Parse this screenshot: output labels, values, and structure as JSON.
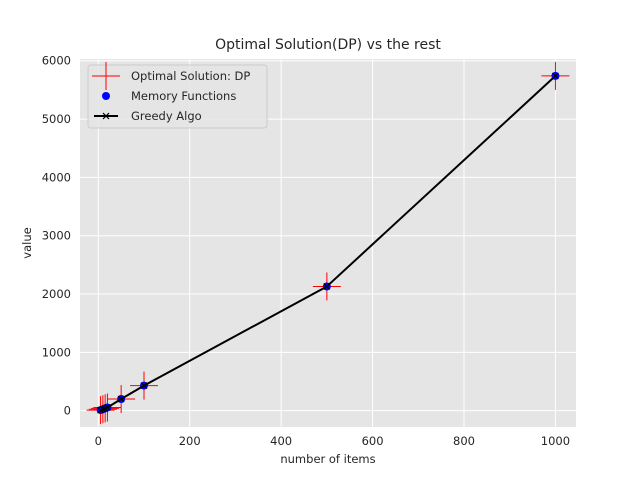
{
  "chart_data": {
    "type": "line",
    "title": "Optimal Solution(DP) vs the rest",
    "xlabel": "number of items",
    "ylabel": "value",
    "xlim": [
      -40,
      1045
    ],
    "ylim": [
      -280,
      6030
    ],
    "xticks": [
      0,
      200,
      400,
      600,
      800,
      1000
    ],
    "yticks": [
      0,
      1000,
      2000,
      3000,
      4000,
      5000,
      6000
    ],
    "grid": true,
    "background": "#e5e5e5",
    "legend_position": "upper-left",
    "x": [
      5,
      10,
      15,
      20,
      50,
      100,
      500,
      1000
    ],
    "series": [
      {
        "name": "Optimal Solution: DP",
        "marker": "plus",
        "color": "#ff0000",
        "values": [
          10,
          25,
          40,
          55,
          200,
          430,
          2130,
          5740
        ]
      },
      {
        "name": "Memory Functions",
        "marker": "circle",
        "color": "#0000ff",
        "values": [
          10,
          25,
          40,
          55,
          200,
          430,
          2130,
          5740
        ]
      },
      {
        "name": "Greedy Algo",
        "marker": "x",
        "color": "#000000",
        "line": true,
        "values": [
          10,
          25,
          40,
          55,
          200,
          430,
          2130,
          5740
        ]
      }
    ]
  }
}
